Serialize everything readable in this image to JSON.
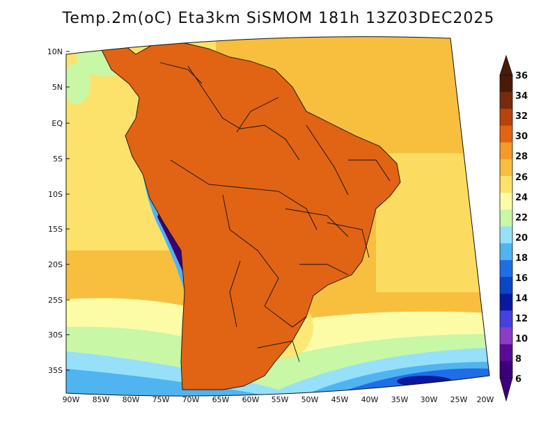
{
  "title": "Temp.2m(oC) Eta3km SiSMOM 181h 13Z03DEC2025",
  "latitude_labels": [
    "10N",
    "5N",
    "EQ",
    "5S",
    "10S",
    "15S",
    "20S",
    "25S",
    "30S",
    "35S"
  ],
  "longitude_labels": [
    "90W",
    "85W",
    "80W",
    "75W",
    "70W",
    "65W",
    "60W",
    "55W",
    "50W",
    "45W",
    "40W",
    "35W",
    "30W",
    "25W",
    "20W"
  ],
  "colorbar": {
    "labels": [
      "36",
      "34",
      "32",
      "30",
      "28",
      "26",
      "24",
      "22",
      "20",
      "18",
      "16",
      "14",
      "12",
      "10",
      "8",
      "6"
    ],
    "colors": [
      "#4a1a08",
      "#7a2a0c",
      "#b8420e",
      "#e06414",
      "#f49a2a",
      "#f8be3e",
      "#fce26a",
      "#fcfca6",
      "#c8f7a6",
      "#96e0fa",
      "#50b4f0",
      "#1e6ee6",
      "#0a46c8",
      "#0a18a0",
      "#4640e0",
      "#8c3cc8",
      "#5a0a96",
      "#3c0078"
    ],
    "under_color": "#3c0078",
    "over_color": "#4a1a08"
  }
}
